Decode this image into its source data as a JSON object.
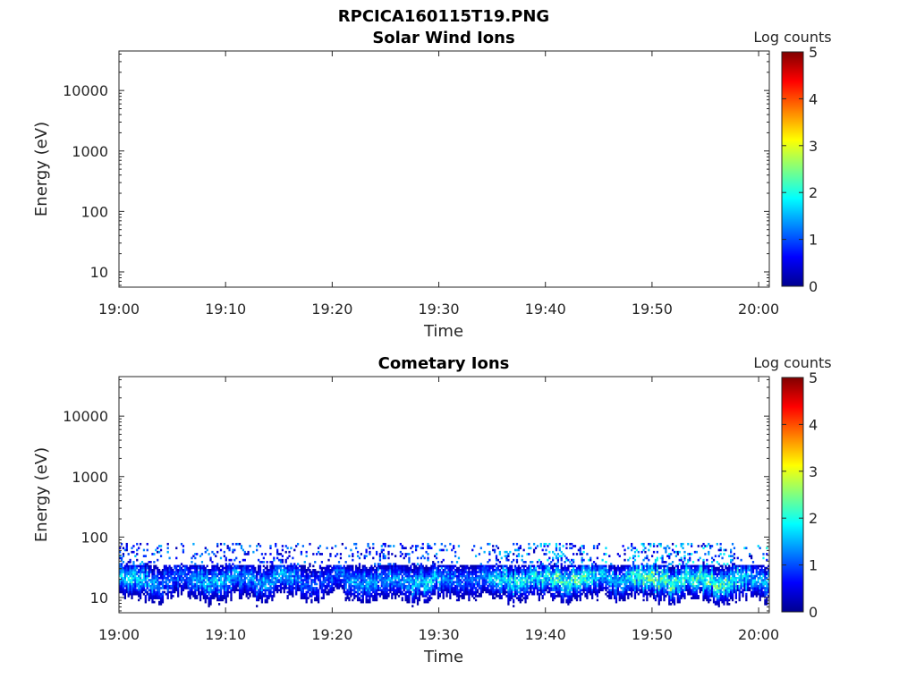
{
  "figure_title": "RPCICA160115T19.PNG",
  "colorscale": [
    "#00008f",
    "#0000ff",
    "#0080ff",
    "#00ffff",
    "#80ff80",
    "#ffff00",
    "#ff8000",
    "#ff0000",
    "#800000"
  ],
  "chart_data": [
    {
      "type": "heatmap",
      "title": "Solar Wind Ions",
      "xlabel": "Time",
      "ylabel": "Energy (eV)",
      "y_scale": "log",
      "ylim": [
        5.6,
        45000
      ],
      "yticks": [
        10,
        100,
        1000,
        10000
      ],
      "ytick_labels": [
        "10",
        "100",
        "1000",
        "10000"
      ],
      "xlim": [
        "19:00",
        "20:01"
      ],
      "xticks": [
        "19:00",
        "19:10",
        "19:20",
        "19:30",
        "19:40",
        "19:50",
        "20:00"
      ],
      "colorbar": {
        "label": "Log counts",
        "min": 0,
        "max": 5,
        "ticks": [
          "0",
          "1",
          "2",
          "3",
          "4",
          "5"
        ]
      },
      "data_present": false
    },
    {
      "type": "heatmap",
      "title": "Cometary Ions",
      "xlabel": "Time",
      "ylabel": "Energy (eV)",
      "y_scale": "log",
      "ylim": [
        5.6,
        45000
      ],
      "yticks": [
        10,
        100,
        1000,
        10000
      ],
      "ytick_labels": [
        "10",
        "100",
        "1000",
        "10000"
      ],
      "xlim": [
        "19:00",
        "20:01"
      ],
      "xticks": [
        "19:00",
        "19:10",
        "19:20",
        "19:30",
        "19:40",
        "19:50",
        "20:00"
      ],
      "colorbar": {
        "label": "Log counts",
        "min": 0,
        "max": 5,
        "ticks": [
          "0",
          "1",
          "2",
          "3",
          "4",
          "5"
        ]
      },
      "data_present": true,
      "energy_range_eV": [
        6,
        80
      ],
      "band_peak_energy_eV": 20,
      "peak_log_counts_by_time": [
        {
          "time": "19:00",
          "max_log_counts": 2.0
        },
        {
          "time": "19:10",
          "max_log_counts": 1.8
        },
        {
          "time": "19:20",
          "max_log_counts": 1.6
        },
        {
          "time": "19:30",
          "max_log_counts": 1.9
        },
        {
          "time": "19:35",
          "max_log_counts": 2.0
        },
        {
          "time": "19:40",
          "max_log_counts": 2.4
        },
        {
          "time": "19:45",
          "max_log_counts": 2.6
        },
        {
          "time": "19:50",
          "max_log_counts": 2.8
        },
        {
          "time": "19:55",
          "max_log_counts": 2.5
        },
        {
          "time": "20:00",
          "max_log_counts": 2.6
        }
      ]
    }
  ]
}
